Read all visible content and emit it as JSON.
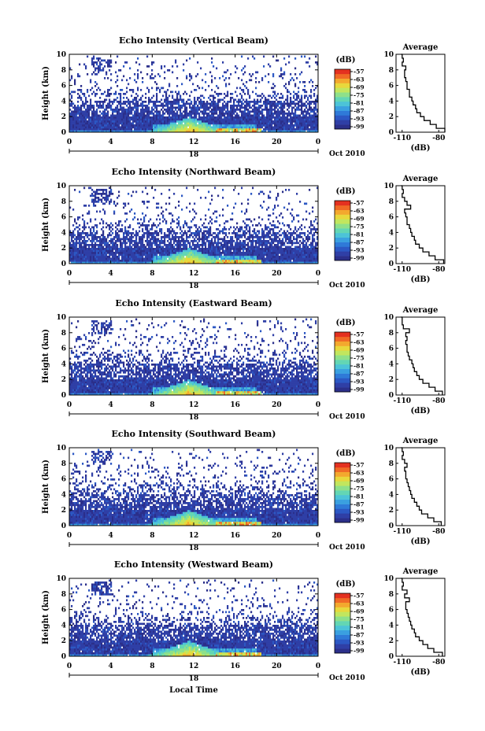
{
  "figure": {
    "xlabel": "Local Time",
    "panels": [
      {
        "title": "Echo Intensity (Vertical Beam)"
      },
      {
        "title": "Echo Intensity (Northward Beam)"
      },
      {
        "title": "Echo Intensity (Eastward Beam)"
      },
      {
        "title": "Echo Intensity (Southward Beam)"
      },
      {
        "title": "Echo Intensity (Westward Beam)"
      }
    ],
    "ylabel": "Height (km)",
    "yticks": [
      "0",
      "2",
      "4",
      "6",
      "8",
      "10"
    ],
    "xticks": [
      "0",
      "4",
      "8",
      "12",
      "16",
      "20",
      "0"
    ],
    "date_day": "18",
    "date_month": "Oct 2010",
    "colorbar": {
      "unit": "(dB)",
      "ticks": [
        "-57",
        "-63",
        "-69",
        "-75",
        "-81",
        "-87",
        "-93",
        "-99"
      ],
      "colors": [
        "#2b2f8a",
        "#2f3fa6",
        "#2c58c4",
        "#2f7ad8",
        "#3aa0e0",
        "#4cc3d8",
        "#63d6b4",
        "#8ee08a",
        "#c2e65e",
        "#e8d83c",
        "#f3a82e",
        "#f06a26",
        "#e43120"
      ]
    },
    "average": {
      "title": "Average",
      "xlabel": "(dB)",
      "xticks": [
        "-110",
        "-80"
      ],
      "yticks": [
        "0",
        "2",
        "4",
        "6",
        "8",
        "10"
      ]
    }
  },
  "chart_data": [
    {
      "type": "heatmap",
      "title": "Echo Intensity (Vertical Beam)",
      "xlabel": "Local Time",
      "ylabel": "Height (km)",
      "xlim": [
        0,
        24
      ],
      "ylim": [
        0,
        10
      ],
      "zlim": [
        -99,
        -57
      ],
      "zunit": "dB",
      "date": "18 Oct 2010",
      "average_profile": {
        "title": "Average",
        "xlabel": "(dB)",
        "xlim": [
          -115,
          -75
        ],
        "height_km": [
          0,
          0.5,
          1,
          1.5,
          2,
          2.5,
          3,
          3.5,
          4,
          4.5,
          5,
          5.5,
          6,
          6.5,
          7,
          7.5,
          8,
          8.5,
          9,
          9.5,
          10
        ],
        "db": [
          -75,
          -82,
          -87,
          -92,
          -95,
          -98,
          -99,
          -101,
          -102,
          -104,
          -104,
          -106,
          -106,
          -107,
          -108,
          -108,
          -107,
          -110,
          -109,
          -110,
          -111
        ]
      }
    },
    {
      "type": "heatmap",
      "title": "Echo Intensity (Northward Beam)",
      "xlabel": "Local Time",
      "ylabel": "Height (km)",
      "xlim": [
        0,
        24
      ],
      "ylim": [
        0,
        10
      ],
      "zlim": [
        -99,
        -57
      ],
      "zunit": "dB",
      "date": "18 Oct 2010",
      "average_profile": {
        "title": "Average",
        "xlabel": "(dB)",
        "xlim": [
          -115,
          -75
        ],
        "height_km": [
          0,
          0.5,
          1,
          1.5,
          2,
          2.5,
          3,
          3.5,
          4,
          4.5,
          5,
          5.5,
          6,
          6.5,
          7,
          7.5,
          8,
          8.5,
          9,
          9.5,
          10
        ],
        "db": [
          -76,
          -83,
          -88,
          -93,
          -96,
          -99,
          -100,
          -102,
          -103,
          -104,
          -106,
          -106,
          -107,
          -108,
          -103,
          -106,
          -108,
          -110,
          -109,
          -110,
          -111
        ]
      }
    },
    {
      "type": "heatmap",
      "title": "Echo Intensity (Eastward Beam)",
      "xlabel": "Local Time",
      "ylabel": "Height (km)",
      "xlim": [
        0,
        24
      ],
      "ylim": [
        0,
        10
      ],
      "zlim": [
        -99,
        -57
      ],
      "zunit": "dB",
      "date": "18 Oct 2010",
      "average_profile": {
        "title": "Average",
        "xlabel": "(dB)",
        "xlim": [
          -115,
          -75
        ],
        "height_km": [
          0,
          0.5,
          1,
          1.5,
          2,
          2.5,
          3,
          3.5,
          4,
          4.5,
          5,
          5.5,
          6,
          6.5,
          7,
          7.5,
          8,
          8.5,
          9,
          9.5,
          10
        ],
        "db": [
          -77,
          -83,
          -88,
          -93,
          -96,
          -98,
          -100,
          -101,
          -102,
          -104,
          -105,
          -106,
          -106,
          -107,
          -106,
          -107,
          -104,
          -109,
          -110,
          -110,
          -111
        ]
      }
    },
    {
      "type": "heatmap",
      "title": "Echo Intensity (Southward Beam)",
      "xlabel": "Local Time",
      "ylabel": "Height (km)",
      "xlim": [
        0,
        24
      ],
      "ylim": [
        0,
        10
      ],
      "zlim": [
        -99,
        -57
      ],
      "zunit": "dB",
      "date": "18 Oct 2010",
      "average_profile": {
        "title": "Average",
        "xlabel": "(dB)",
        "xlim": [
          -115,
          -75
        ],
        "height_km": [
          0,
          0.5,
          1,
          1.5,
          2,
          2.5,
          3,
          3.5,
          4,
          4.5,
          5,
          5.5,
          6,
          6.5,
          7,
          7.5,
          8,
          8.5,
          9,
          9.5,
          10
        ],
        "db": [
          -78,
          -84,
          -89,
          -94,
          -96,
          -98,
          -100,
          -102,
          -103,
          -104,
          -105,
          -106,
          -107,
          -107,
          -108,
          -106,
          -108,
          -110,
          -109,
          -110,
          -111
        ]
      }
    },
    {
      "type": "heatmap",
      "title": "Echo Intensity (Westward Beam)",
      "xlabel": "Local Time",
      "ylabel": "Height (km)",
      "xlim": [
        0,
        24
      ],
      "ylim": [
        0,
        10
      ],
      "zlim": [
        -99,
        -57
      ],
      "zunit": "dB",
      "date": "18 Oct 2010",
      "average_profile": {
        "title": "Average",
        "xlabel": "(dB)",
        "xlim": [
          -115,
          -75
        ],
        "height_km": [
          0,
          0.5,
          1,
          1.5,
          2,
          2.5,
          3,
          3.5,
          4,
          4.5,
          5,
          5.5,
          6,
          6.5,
          7,
          7.5,
          8,
          8.5,
          9,
          9.5,
          10
        ],
        "db": [
          -77,
          -84,
          -89,
          -93,
          -96,
          -99,
          -100,
          -102,
          -103,
          -104,
          -105,
          -106,
          -107,
          -107,
          -104,
          -108,
          -106,
          -110,
          -109,
          -110,
          -111
        ]
      }
    }
  ]
}
